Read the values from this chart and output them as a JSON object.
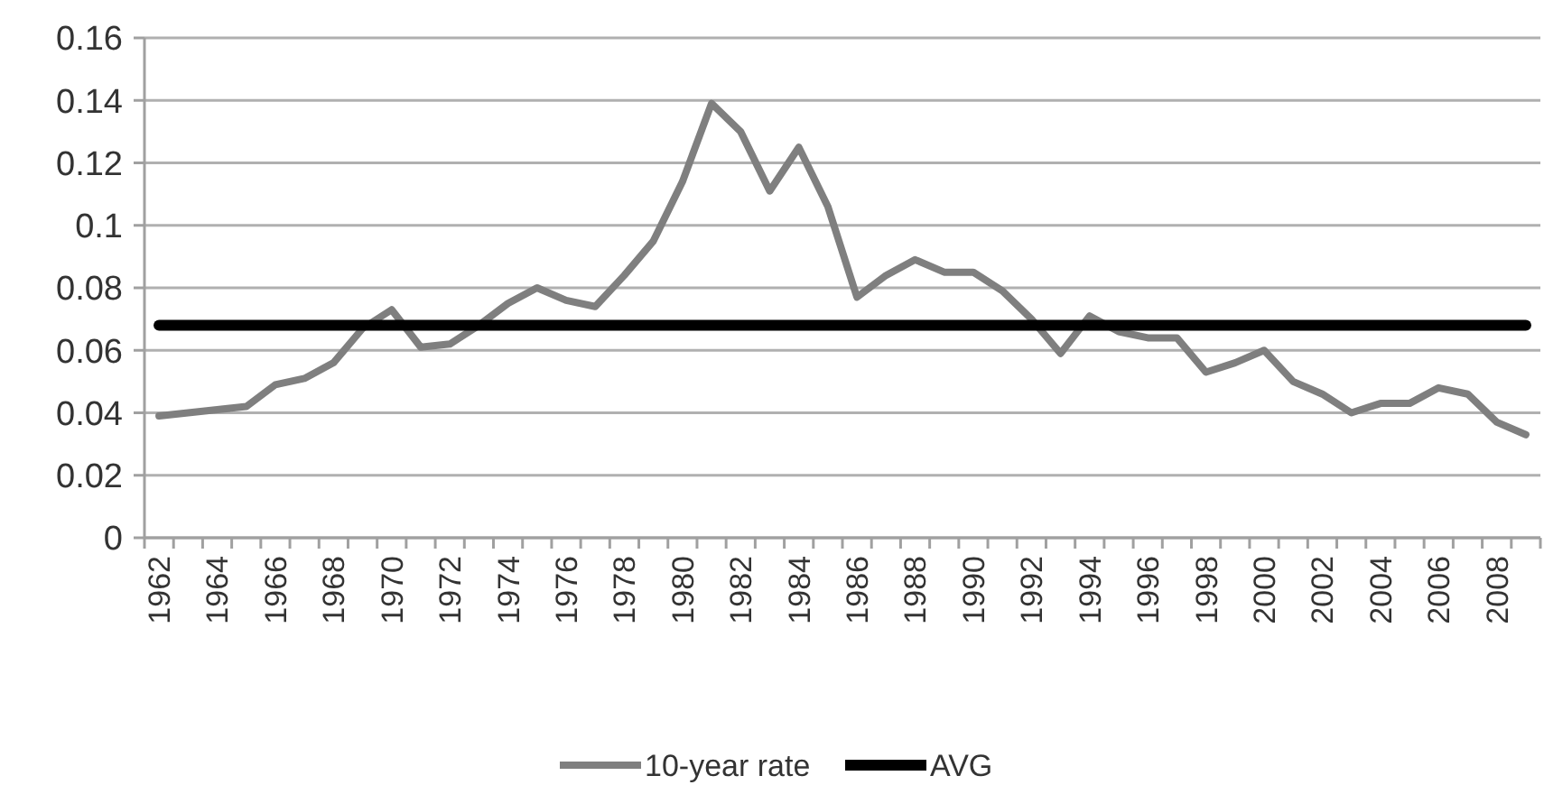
{
  "chart_data": {
    "type": "line",
    "categories": [
      "1962",
      null,
      "1964",
      null,
      "1966",
      null,
      "1968",
      null,
      "1970",
      null,
      "1972",
      null,
      "1974",
      null,
      "1976",
      null,
      "1978",
      null,
      "1980",
      null,
      "1982",
      null,
      "1984",
      null,
      "1986",
      null,
      "1988",
      null,
      "1990",
      null,
      "1992",
      null,
      "1994",
      null,
      "1996",
      null,
      "1998",
      null,
      "2000",
      null,
      "2002",
      null,
      "2004",
      null,
      "2006",
      null,
      "2008",
      null
    ],
    "series": [
      {
        "name": "10-year rate",
        "color": "#7f7f7f",
        "values": [
          0.039,
          0.04,
          0.041,
          0.042,
          0.049,
          0.051,
          0.056,
          0.067,
          0.073,
          0.061,
          0.062,
          0.068,
          0.075,
          0.08,
          0.076,
          0.074,
          0.084,
          0.095,
          0.114,
          0.139,
          0.13,
          0.111,
          0.125,
          0.106,
          0.077,
          0.084,
          0.089,
          0.085,
          0.085,
          0.079,
          0.07,
          0.059,
          0.071,
          0.066,
          0.064,
          0.064,
          0.053,
          0.056,
          0.06,
          0.05,
          0.046,
          0.04,
          0.043,
          0.043,
          0.048,
          0.046,
          0.037,
          0.033
        ]
      },
      {
        "name": "AVG",
        "color": "#000000",
        "values": [
          0.068,
          0.068,
          0.068,
          0.068,
          0.068,
          0.068,
          0.068,
          0.068,
          0.068,
          0.068,
          0.068,
          0.068,
          0.068,
          0.068,
          0.068,
          0.068,
          0.068,
          0.068,
          0.068,
          0.068,
          0.068,
          0.068,
          0.068,
          0.068,
          0.068,
          0.068,
          0.068,
          0.068,
          0.068,
          0.068,
          0.068,
          0.068,
          0.068,
          0.068,
          0.068,
          0.068,
          0.068,
          0.068,
          0.068,
          0.068,
          0.068,
          0.068,
          0.068,
          0.068,
          0.068,
          0.068,
          0.068,
          0.068
        ]
      }
    ],
    "ylim": [
      0,
      0.16
    ],
    "yticks": [
      0,
      0.02,
      0.04,
      0.06,
      0.08,
      {
        "value": 0.1,
        "label": "0.1"
      },
      0.12,
      0.14,
      0.16
    ],
    "grid": "y",
    "legend": "bottom",
    "marker": "none",
    "line_style": "solid"
  }
}
